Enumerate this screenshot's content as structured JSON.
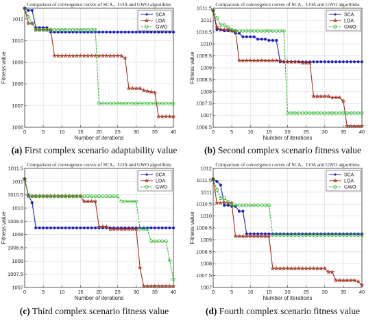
{
  "colors": {
    "sca": "#1f1fbf",
    "loa": "#a0301c",
    "gwo": "#2ab52a"
  },
  "legend_labels": [
    "SCA",
    "LOA",
    "GWO"
  ],
  "chart_data": [
    {
      "type": "line",
      "title": "Comparison of convergence curves of SCA、LOA and GWO algorithms",
      "xlabel": "Number of iterations",
      "ylabel": "Fitness value",
      "xlim": [
        0,
        40
      ],
      "ylim": [
        1006,
        1011.5
      ],
      "xticks": [
        0,
        5,
        10,
        15,
        20,
        25,
        30,
        35,
        40
      ],
      "yticks": [
        1006,
        1007,
        1008,
        1009,
        1010,
        1011
      ],
      "grid": true,
      "legend": "top-right",
      "series": [
        {
          "name": "SCA",
          "x": [
            0,
            1,
            2,
            3,
            4,
            5,
            6,
            7,
            40
          ],
          "y": [
            1011.5,
            1011.4,
            1011.4,
            1010.6,
            1010.6,
            1010.6,
            1010.6,
            1010.4,
            1010.4
          ]
        },
        {
          "name": "LOA",
          "x": [
            0,
            1,
            2,
            3,
            7,
            8,
            26,
            27,
            28,
            31,
            32,
            35,
            36,
            40
          ],
          "y": [
            1011.5,
            1010.8,
            1010.8,
            1010.5,
            1010.5,
            1009.3,
            1009.3,
            1009.2,
            1007.8,
            1007.8,
            1007.7,
            1007.6,
            1006.5,
            1006.5
          ]
        },
        {
          "name": "GWO",
          "x": [
            0,
            1,
            2,
            3,
            19,
            20,
            40
          ],
          "y": [
            1011.5,
            1011.1,
            1010.8,
            1010.5,
            1010.5,
            1007.1,
            1007.1
          ]
        }
      ]
    },
    {
      "type": "line",
      "title": "Comparison of convergence curves of SCA、LOA and GWO algorithms",
      "xlabel": "Number of iterations",
      "ylabel": "Fitness value",
      "xlim": [
        0,
        40
      ],
      "ylim": [
        1006.5,
        1011.5
      ],
      "xticks": [
        0,
        5,
        10,
        15,
        20,
        25,
        30,
        35,
        40
      ],
      "yticks": [
        1006.5,
        1007,
        1007.5,
        1008,
        1008.5,
        1009,
        1009.5,
        1010,
        1010.5,
        1011,
        1011.5
      ],
      "grid": true,
      "legend": "top-right",
      "series": [
        {
          "name": "SCA",
          "x": [
            0,
            1,
            2,
            3,
            4,
            5,
            6,
            7,
            8,
            11,
            12,
            14,
            15,
            17,
            18,
            40
          ],
          "y": [
            1011.4,
            1010.6,
            1010.6,
            1010.55,
            1010.55,
            1010.55,
            1010.45,
            1010.45,
            1010.3,
            1010.3,
            1010.2,
            1010.2,
            1010.15,
            1010.15,
            1009.25,
            1009.25
          ]
        },
        {
          "name": "LOA",
          "x": [
            0,
            1,
            2,
            4,
            5,
            6,
            7,
            18,
            19,
            23,
            24,
            26,
            27,
            31,
            32,
            34,
            35,
            36,
            40
          ],
          "y": [
            1011.4,
            1010.7,
            1010.6,
            1010.6,
            1010.55,
            1010.55,
            1009.3,
            1009.3,
            1009.25,
            1009.25,
            1009.2,
            1009.2,
            1007.8,
            1007.8,
            1007.75,
            1007.75,
            1007.6,
            1006.55,
            1006.55
          ]
        },
        {
          "name": "GWO",
          "x": [
            0,
            1,
            2,
            3,
            5,
            6,
            19,
            20,
            40
          ],
          "y": [
            1011.4,
            1011.1,
            1010.8,
            1010.8,
            1010.6,
            1010.55,
            1010.55,
            1007.1,
            1007.1
          ]
        }
      ]
    },
    {
      "type": "line",
      "title": "Comparison of convergence curves of SCA、LOA and GWO algorithms",
      "xlabel": "Number of iterations",
      "ylabel": "Fitness value",
      "xlim": [
        0,
        40
      ],
      "ylim": [
        1007,
        1011.5
      ],
      "xticks": [
        0,
        5,
        10,
        15,
        20,
        25,
        30,
        35,
        40
      ],
      "yticks": [
        1007,
        1007.5,
        1008,
        1008.5,
        1009,
        1009.5,
        1010,
        1010.5,
        1011,
        1011.5
      ],
      "grid": true,
      "legend": "top-right",
      "series": [
        {
          "name": "SCA",
          "x": [
            0,
            1,
            2,
            3,
            40
          ],
          "y": [
            1011.1,
            1010.5,
            1010.2,
            1009.25,
            1009.25
          ]
        },
        {
          "name": "LOA",
          "x": [
            0,
            1,
            15,
            16,
            19,
            20,
            22,
            23,
            30,
            31,
            32,
            40
          ],
          "y": [
            1011.1,
            1010.45,
            1010.45,
            1010.25,
            1010.25,
            1009.3,
            1009.3,
            1009.2,
            1009.2,
            1007.75,
            1007.05,
            1007.05
          ]
        },
        {
          "name": "GWO",
          "x": [
            0,
            1,
            25,
            26,
            30,
            31,
            33,
            34,
            37,
            38,
            40
          ],
          "y": [
            1011.1,
            1010.45,
            1010.45,
            1010.25,
            1010.25,
            1009.2,
            1009.2,
            1008.75,
            1008.75,
            1008.75,
            1007.3
          ]
        }
      ]
    },
    {
      "type": "line",
      "title": "Comparison of convergence curves of SCA、LOA and GWO algorithms",
      "xlabel": "Number of iterations",
      "ylabel": "Fitness value",
      "xlim": [
        0,
        40
      ],
      "ylim": [
        1007,
        1012
      ],
      "xticks": [
        0,
        5,
        10,
        15,
        20,
        25,
        30,
        35,
        40
      ],
      "yticks": [
        1007,
        1007.5,
        1008,
        1008.5,
        1009,
        1009.5,
        1010,
        1010.5,
        1011,
        1011.5,
        1012
      ],
      "grid": true,
      "legend": "top-right",
      "series": [
        {
          "name": "SCA",
          "x": [
            0,
            1,
            2,
            3,
            4,
            5,
            6,
            7,
            8,
            9,
            40
          ],
          "y": [
            1011.55,
            1011.45,
            1011.3,
            1010.45,
            1010.45,
            1010.4,
            1010.4,
            1010.2,
            1010.2,
            1009.25,
            1009.25
          ]
        },
        {
          "name": "LOA",
          "x": [
            0,
            1,
            5,
            6,
            15,
            16,
            30,
            31,
            32,
            33,
            38,
            39,
            40
          ],
          "y": [
            1011.55,
            1010.55,
            1010.55,
            1009.15,
            1009.15,
            1007.8,
            1007.8,
            1007.65,
            1007.65,
            1007.3,
            1007.3,
            1007.25,
            1007.1
          ]
        },
        {
          "name": "GWO",
          "x": [
            0,
            1,
            2,
            3,
            4,
            5,
            15,
            16,
            40
          ],
          "y": [
            1011.55,
            1011.1,
            1010.75,
            1010.75,
            1010.6,
            1010.45,
            1010.45,
            1009.2,
            1009.2
          ]
        }
      ]
    }
  ],
  "captions": [
    {
      "letter": "(a)",
      "text": " First complex scenario adaptability value"
    },
    {
      "letter": "(b)",
      "text": " Second complex scenario fitness value"
    },
    {
      "letter": "(c)",
      "text": " Third complex scenario fitness value"
    },
    {
      "letter": "(d)",
      "text": " Fourth complex scenario fitness value"
    }
  ]
}
